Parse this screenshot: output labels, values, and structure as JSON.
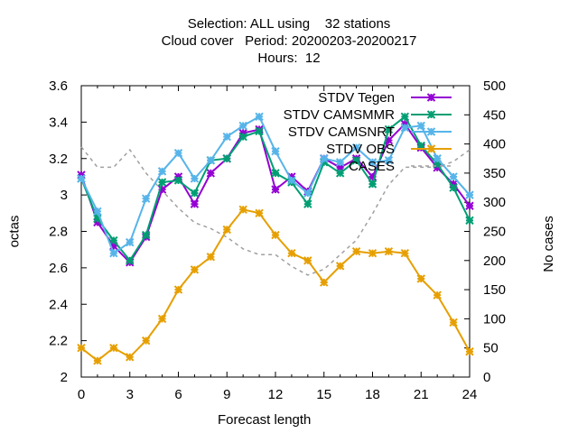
{
  "chart_data": {
    "type": "line",
    "title_lines": [
      "Selection: ALL using    32 stations",
      "Cloud cover   Period: 20200203-20200217",
      "Hours:  12"
    ],
    "xlabel": "Forecast length",
    "ylabel": "octas",
    "y2label": "No cases",
    "xlim": [
      0,
      24
    ],
    "ylim": [
      2,
      3.6
    ],
    "y2lim": [
      0,
      500
    ],
    "x_ticks": [
      0,
      3,
      6,
      9,
      12,
      15,
      18,
      21,
      24
    ],
    "y_ticks": [
      2,
      2.2,
      2.4,
      2.6,
      2.8,
      3,
      3.2,
      3.4,
      3.6
    ],
    "y_tick_labels": [
      "2",
      "2.2",
      "2.4",
      "2.6",
      "2.8",
      "3",
      "3.2",
      "3.4",
      "3.6"
    ],
    "y2_ticks": [
      0,
      50,
      100,
      150,
      200,
      250,
      300,
      350,
      400,
      450,
      500
    ],
    "legend_position": "top-right",
    "x": [
      0,
      1,
      2,
      3,
      4,
      5,
      6,
      7,
      8,
      9,
      10,
      11,
      12,
      13,
      14,
      15,
      16,
      17,
      18,
      19,
      20,
      21,
      22,
      23,
      24
    ],
    "series": [
      {
        "name": "STDV Tegen",
        "color": "#9400d3",
        "axis": "y1",
        "style": "line-markers",
        "values": [
          3.11,
          2.85,
          2.72,
          2.63,
          2.77,
          3.03,
          3.1,
          2.95,
          3.12,
          3.2,
          3.34,
          3.36,
          3.03,
          3.1,
          3.02,
          3.2,
          3.15,
          3.2,
          3.1,
          3.3,
          3.39,
          3.26,
          3.15,
          3.06,
          2.94
        ]
      },
      {
        "name": "STDV CAMSMMR",
        "color": "#009e73",
        "axis": "y1",
        "style": "line-markers",
        "values": [
          3.09,
          2.87,
          2.75,
          2.64,
          2.78,
          3.07,
          3.08,
          3.01,
          3.19,
          3.2,
          3.32,
          3.35,
          3.12,
          3.07,
          2.95,
          3.18,
          3.12,
          3.19,
          3.06,
          3.36,
          3.43,
          3.27,
          3.17,
          3.04,
          2.86
        ]
      },
      {
        "name": "STDV CAMSNRT",
        "color": "#56b4e9",
        "axis": "y1",
        "style": "line-markers",
        "values": [
          3.09,
          2.91,
          2.68,
          2.74,
          2.98,
          3.13,
          3.23,
          3.09,
          3.19,
          3.32,
          3.38,
          3.43,
          3.24,
          3.08,
          3.01,
          3.2,
          3.18,
          3.26,
          3.18,
          3.19,
          3.37,
          3.38,
          3.2,
          3.1,
          3.0
        ]
      },
      {
        "name": "STDV OBS",
        "color": "#e69f00",
        "axis": "y1",
        "style": "line-markers",
        "values": [
          2.16,
          2.09,
          2.16,
          2.11,
          2.2,
          2.32,
          2.48,
          2.59,
          2.66,
          2.81,
          2.92,
          2.9,
          2.78,
          2.68,
          2.64,
          2.52,
          2.61,
          2.69,
          2.68,
          2.69,
          2.68,
          2.54,
          2.45,
          2.3,
          2.14
        ]
      },
      {
        "name": "CASES",
        "color": "#a0a0a0",
        "axis": "y2",
        "style": "dashed",
        "values": [
          395,
          360,
          360,
          390,
          350,
          320,
          290,
          265,
          255,
          240,
          220,
          210,
          210,
          190,
          175,
          185,
          210,
          235,
          280,
          330,
          360,
          360,
          360,
          370,
          390
        ]
      }
    ]
  }
}
